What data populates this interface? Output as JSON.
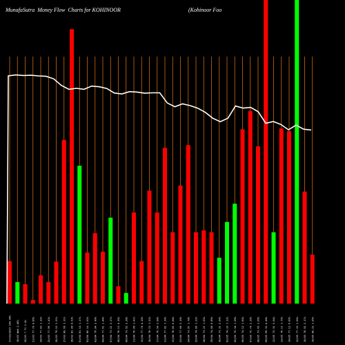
{
  "header": {
    "title": "MunafaSutra  Money Flow  Charts for KOHINOOR",
    "subtitle": "(Kohinoor Foo"
  },
  "chart_data": {
    "type": "bar",
    "colors": {
      "up": "#00ff00",
      "down": "#ff0000",
      "grid": "#d4690f",
      "line": "#ffffff",
      "background": "#000000"
    },
    "ylim": [
      0,
      100
    ],
    "grid": true,
    "bars": [
      {
        "label": "17/03/2025 104.46%",
        "value": 14.0,
        "color": "red"
      },
      {
        "label": "18/03 Wed 2.40%",
        "value": 7.1,
        "color": "green"
      },
      {
        "label": "20/03 7.71 1.4%",
        "value": 6.4,
        "color": "red"
      },
      {
        "label": "21/03 77.70 0.86%",
        "value": 1.2,
        "color": "red"
      },
      {
        "label": "24/03 77.83 1.32%",
        "value": 9.3,
        "color": "red"
      },
      {
        "label": "25/03 77.96 1.43%",
        "value": 7.1,
        "color": "red"
      },
      {
        "label": "26/03 79.53 1.51%",
        "value": 13.8,
        "color": "red"
      },
      {
        "label": "27/03 80.69 1.31%",
        "value": 53.9,
        "color": "red"
      },
      {
        "label": "28/03 82.09 0.53%",
        "value": 90.4,
        "color": "red"
      },
      {
        "label": "01/04 81.14 1.17%",
        "value": 45.4,
        "color": "green"
      },
      {
        "label": "02/04 80.14 1.02%",
        "value": 16.8,
        "color": "red"
      },
      {
        "label": "03/04 79.04 2.49%",
        "value": 23.2,
        "color": "red"
      },
      {
        "label": "04/04 77.61 1.44%",
        "value": 17.1,
        "color": "red"
      },
      {
        "label": "07/04 73.21 2.27%",
        "value": 28.3,
        "color": "green"
      },
      {
        "label": "08/04 76.13 4.16%",
        "value": 5.7,
        "color": "red"
      },
      {
        "label": "09/04 73.62 3.28%",
        "value": 3.5,
        "color": "green"
      },
      {
        "label": "11/04 76.99 1.41%",
        "value": 30.0,
        "color": "red"
      },
      {
        "label": "15/04 77.70 4.16%",
        "value": 14.0,
        "color": "red"
      },
      {
        "label": "16/04 78.23 1.52%",
        "value": 37.2,
        "color": "red"
      },
      {
        "label": "17/04 76.54 2.08%",
        "value": 30.0,
        "color": "red"
      },
      {
        "label": "21/04 77.82 1.20%",
        "value": 51.3,
        "color": "red"
      },
      {
        "label": "22/04 78.85 0.68%",
        "value": 23.5,
        "color": "red"
      },
      {
        "label": "23/04 77.66 2.19%",
        "value": 38.9,
        "color": "red"
      },
      {
        "label": "24/04 73.97 1.78%",
        "value": 52.2,
        "color": "red"
      },
      {
        "label": "25/04 74.86 1.22%",
        "value": 23.5,
        "color": "red"
      },
      {
        "label": "28/04 73.21 1.05%",
        "value": 24.1,
        "color": "red"
      },
      {
        "label": "29/04 74.48 0.89%",
        "value": 23.5,
        "color": "red"
      },
      {
        "label": "30/04 73.31 2.00%",
        "value": 15.1,
        "color": "green"
      },
      {
        "label": "02/05 74.33 1.12%",
        "value": 26.9,
        "color": "green"
      },
      {
        "label": "05/05 75.34 1.59%",
        "value": 32.9,
        "color": "green"
      },
      {
        "label": "06/05 74.12 1.80%",
        "value": 57.4,
        "color": "red"
      },
      {
        "label": "07/05 75.79 2.29%",
        "value": 63.4,
        "color": "red"
      },
      {
        "label": "08/05 73.45 3.09%",
        "value": 51.8,
        "color": "red"
      },
      {
        "label": "09/05 69.32 4.48%",
        "value": 100,
        "color": "red"
      },
      {
        "label": "12/05 72.31 5.04%",
        "value": 23.5,
        "color": "green"
      },
      {
        "label": "13/05 76.11 1.75%",
        "value": 57.7,
        "color": "red"
      },
      {
        "label": "14/05 77.12 0.80%",
        "value": 56.8,
        "color": "red"
      },
      {
        "label": "15/05 77.33 1.06%",
        "value": 100,
        "color": "green"
      },
      {
        "label": "16/05 78.02 2.17%",
        "value": 36.9,
        "color": "red"
      },
      {
        "label": "19/05 80.22 1.05%",
        "value": 16.1,
        "color": "red"
      }
    ],
    "price_line": [
      100,
      100.5,
      100.2,
      100.3,
      100.0,
      99.8,
      98.5,
      95.2,
      93.2,
      93.7,
      93.2,
      94.8,
      94.5,
      93.6,
      91.3,
      90.8,
      92.0,
      91.8,
      91.2,
      91.4,
      91.4,
      86.2,
      84.3,
      85.8,
      84.9,
      83.6,
      81.5,
      78.5,
      76.7,
      78.5,
      84.7,
      83.6,
      84.0,
      81.8,
      75.9,
      76.8,
      75.3,
      72.6,
      75.0,
      72.9,
      72.5
    ]
  }
}
